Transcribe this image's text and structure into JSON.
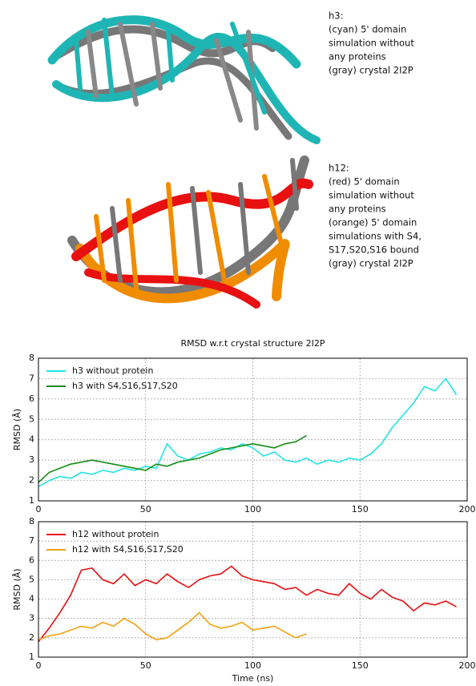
{
  "panels": [
    {
      "lines": [
        "h3:",
        "(cyan) 5' domain",
        "simulation without",
        "any proteins",
        "(gray) crystal 2I2P"
      ]
    },
    {
      "lines": [
        "h12:",
        "(red) 5' domain",
        "simulation without",
        "any proteins",
        "(orange) 5' domain",
        "simulations with S4,",
        "S17,S20,S16 bound",
        "(gray) crystal 2I2P"
      ]
    }
  ],
  "chart_data": [
    {
      "type": "line",
      "title": "RMSD w.r.t crystal structure 2I2P",
      "ylabel": "RMSD (Å)",
      "xlim": [
        0,
        200
      ],
      "xticks": [
        0,
        50,
        100,
        150,
        200
      ],
      "ylim": [
        1,
        8
      ],
      "yticks": [
        1,
        2,
        3,
        4,
        5,
        6,
        7,
        8
      ],
      "grid": true,
      "legend": "upper left",
      "series": [
        {
          "name": "h3 without protein",
          "color": "#22e5e5",
          "x": [
            0,
            5,
            10,
            15,
            20,
            25,
            30,
            35,
            40,
            45,
            50,
            55,
            60,
            65,
            70,
            75,
            80,
            85,
            90,
            95,
            100,
            105,
            110,
            115,
            120,
            125,
            130,
            135,
            140,
            145,
            150,
            155,
            160,
            165,
            170,
            175,
            180,
            185,
            190,
            195
          ],
          "values": [
            1.7,
            2.0,
            2.2,
            2.1,
            2.4,
            2.3,
            2.5,
            2.4,
            2.6,
            2.5,
            2.7,
            2.6,
            3.8,
            3.2,
            3.0,
            3.3,
            3.4,
            3.6,
            3.5,
            3.8,
            3.6,
            3.2,
            3.4,
            3.0,
            2.9,
            3.1,
            2.8,
            3.0,
            2.9,
            3.1,
            3.0,
            3.3,
            3.8,
            4.6,
            5.2,
            5.8,
            6.6,
            6.4,
            7.0,
            6.2
          ]
        },
        {
          "name": "h3 with S4,S16,S17,S20",
          "color": "#148c14",
          "x": [
            0,
            5,
            10,
            15,
            20,
            25,
            30,
            35,
            40,
            45,
            50,
            55,
            60,
            65,
            70,
            75,
            80,
            85,
            90,
            95,
            100,
            105,
            110,
            115,
            120,
            125
          ],
          "values": [
            1.9,
            2.4,
            2.6,
            2.8,
            2.9,
            3.0,
            2.9,
            2.8,
            2.7,
            2.6,
            2.5,
            2.8,
            2.7,
            2.9,
            3.0,
            3.1,
            3.3,
            3.5,
            3.6,
            3.7,
            3.8,
            3.7,
            3.6,
            3.8,
            3.9,
            4.2
          ]
        }
      ]
    },
    {
      "type": "line",
      "ylabel": "RMSD (Å)",
      "xlabel": "Time (ns)",
      "xlim": [
        0,
        200
      ],
      "xticks": [
        0,
        50,
        100,
        150,
        200
      ],
      "ylim": [
        1,
        8
      ],
      "yticks": [
        1,
        2,
        3,
        4,
        5,
        6,
        7,
        8
      ],
      "grid": true,
      "legend": "upper left",
      "series": [
        {
          "name": "h12 without protein",
          "color": "#e81010",
          "x": [
            0,
            5,
            10,
            15,
            20,
            25,
            30,
            35,
            40,
            45,
            50,
            55,
            60,
            65,
            70,
            75,
            80,
            85,
            90,
            95,
            100,
            105,
            110,
            115,
            120,
            125,
            130,
            135,
            140,
            145,
            150,
            155,
            160,
            165,
            170,
            175,
            180,
            185,
            190,
            195
          ],
          "values": [
            1.8,
            2.5,
            3.3,
            4.2,
            5.5,
            5.6,
            5.0,
            4.8,
            5.3,
            4.7,
            5.0,
            4.8,
            5.3,
            4.9,
            4.6,
            5.0,
            5.2,
            5.3,
            5.7,
            5.2,
            5.0,
            4.9,
            4.8,
            4.5,
            4.6,
            4.2,
            4.5,
            4.3,
            4.2,
            4.8,
            4.3,
            4.0,
            4.5,
            4.1,
            3.9,
            3.4,
            3.8,
            3.7,
            3.9,
            3.6
          ]
        },
        {
          "name": "h12 with S4,S16,S17,S20",
          "color": "#f5a010",
          "x": [
            0,
            5,
            10,
            15,
            20,
            25,
            30,
            35,
            40,
            45,
            50,
            55,
            60,
            65,
            70,
            75,
            80,
            85,
            90,
            95,
            100,
            105,
            110,
            115,
            120,
            125
          ],
          "values": [
            1.9,
            2.1,
            2.2,
            2.4,
            2.6,
            2.5,
            2.8,
            2.6,
            3.0,
            2.7,
            2.2,
            1.9,
            2.0,
            2.4,
            2.8,
            3.3,
            2.7,
            2.5,
            2.6,
            2.8,
            2.4,
            2.5,
            2.6,
            2.3,
            2.0,
            2.2
          ]
        }
      ]
    }
  ]
}
